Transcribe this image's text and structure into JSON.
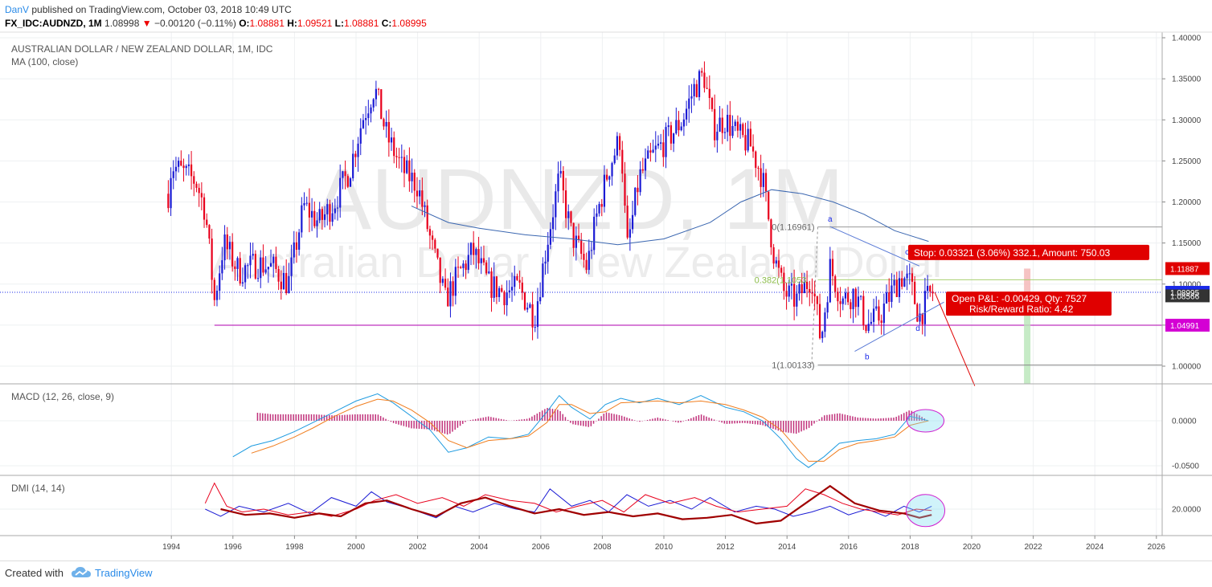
{
  "header": {
    "author": "DanV",
    "published": "published on TradingView.com, October 03, 2018 10:49 UTC",
    "symbol": "FX_IDC:AUDNZD, 1M",
    "last": "1.08998",
    "change": "−0.00120 (−0.11%)",
    "o_label": "O:",
    "o_value": "1.08881",
    "h_label": "H:",
    "h_value": "1.09521",
    "l_label": "L:",
    "l_value": "1.08881",
    "c_label": "C:",
    "c_value": "1.08995"
  },
  "panes": {
    "main": {
      "title": "AUSTRALIAN DOLLAR / NEW ZEALAND DOLLAR, 1M, IDC",
      "indicator": "MA (100, close)",
      "watermark_symbol": "AUDNZD, 1M",
      "watermark_name": "Australian Dollar / New Zealand Dollar"
    },
    "macd": {
      "title": "MACD (12, 26, close, 9)"
    },
    "dmi": {
      "title": "DMI (14, 14)"
    }
  },
  "annotations": {
    "fib_0": "0(1.16961)",
    "fib_382": "0.382(1.1053",
    "fib_1": "1(1.00133)",
    "wave_a": "a",
    "wave_b": "b",
    "wave_c": "c",
    "wave_d": "d",
    "stop_label": "Stop: 0.03321 (3.06%) 332.1, Amount: 750.03",
    "pnl_line1": "Open P&L: -0.00429, Qty: 7527",
    "pnl_line2": "Risk/Reward Ratio: 4.42"
  },
  "price_tags": [
    {
      "value": "1.11887",
      "color": "#e00000"
    },
    {
      "value": "1.08995",
      "color": "#1a2ae8"
    },
    {
      "value": "1.08566",
      "color": "#333333"
    },
    {
      "value": "1.04991",
      "color": "#d400d4"
    }
  ],
  "footer": {
    "created": "Created with",
    "brand": "TradingView"
  },
  "colors": {
    "up": "#1a1ad4",
    "down": "#e8001c",
    "ma": "#3a66b0",
    "macd": "#1e9be0",
    "signal": "#f07d1e",
    "hist": "#c0307a",
    "di_plus": "#1a1ad4",
    "di_minus": "#e8001c",
    "adx": "#a00000",
    "support": "#b000b0"
  },
  "chart_data": [
    {
      "type": "candlestick",
      "pane": "main",
      "title": "AUSTRALIAN DOLLAR / NEW ZEALAND DOLLAR, 1M, IDC",
      "x_ticks": [
        "1994",
        "1996",
        "1998",
        "2000",
        "2002",
        "2004",
        "2006",
        "2008",
        "2010",
        "2012",
        "2014",
        "2016",
        "2018",
        "2020",
        "2022",
        "2024",
        "2026"
      ],
      "xlim": [
        1993.5,
        2026.8
      ],
      "y_ticks": [
        "1.40000",
        "1.35000",
        "1.30000",
        "1.25000",
        "1.20000",
        "1.15000",
        "1.10000",
        "1.05000",
        "1.00000"
      ],
      "ylim": [
        0.976,
        1.402
      ],
      "price_path": [
        [
          1993.9,
          1.21
        ],
        [
          1994.0,
          1.245
        ],
        [
          1994.4,
          1.235
        ],
        [
          1994.8,
          1.225
        ],
        [
          1995.1,
          1.19
        ],
        [
          1995.4,
          1.08
        ],
        [
          1995.7,
          1.15
        ],
        [
          1996.2,
          1.115
        ],
        [
          1996.8,
          1.125
        ],
        [
          1997.3,
          1.12
        ],
        [
          1997.8,
          1.1
        ],
        [
          1998.3,
          1.195
        ],
        [
          1998.8,
          1.175
        ],
        [
          1999.3,
          1.2
        ],
        [
          1999.8,
          1.24
        ],
        [
          2000.2,
          1.3
        ],
        [
          2000.6,
          1.34
        ],
        [
          2001.0,
          1.28
        ],
        [
          2001.5,
          1.24
        ],
        [
          2002.0,
          1.22
        ],
        [
          2002.5,
          1.14
        ],
        [
          2002.9,
          1.08
        ],
        [
          2003.3,
          1.11
        ],
        [
          2003.8,
          1.14
        ],
        [
          2004.3,
          1.1
        ],
        [
          2004.8,
          1.09
        ],
        [
          2005.3,
          1.095
        ],
        [
          2005.8,
          1.06
        ],
        [
          2006.2,
          1.15
        ],
        [
          2006.6,
          1.23
        ],
        [
          2007.0,
          1.16
        ],
        [
          2007.5,
          1.12
        ],
        [
          2007.8,
          1.18
        ],
        [
          2008.2,
          1.24
        ],
        [
          2008.6,
          1.28
        ],
        [
          2008.8,
          1.14
        ],
        [
          2009.2,
          1.23
        ],
        [
          2009.7,
          1.26
        ],
        [
          2010.2,
          1.28
        ],
        [
          2010.6,
          1.3
        ],
        [
          2011.0,
          1.34
        ],
        [
          2011.3,
          1.355
        ],
        [
          2011.6,
          1.29
        ],
        [
          2012.0,
          1.3
        ],
        [
          2012.4,
          1.28
        ],
        [
          2012.8,
          1.27
        ],
        [
          2013.2,
          1.23
        ],
        [
          2013.6,
          1.13
        ],
        [
          2013.9,
          1.09
        ],
        [
          2014.3,
          1.08
        ],
        [
          2014.8,
          1.11
        ],
        [
          2015.1,
          1.03
        ],
        [
          2015.4,
          1.12
        ],
        [
          2015.8,
          1.08
        ],
        [
          2016.2,
          1.09
        ],
        [
          2016.6,
          1.05
        ],
        [
          2017.0,
          1.06
        ],
        [
          2017.4,
          1.09
        ],
        [
          2017.7,
          1.11
        ],
        [
          2018.0,
          1.1
        ],
        [
          2018.3,
          1.06
        ],
        [
          2018.6,
          1.085
        ],
        [
          2018.75,
          1.09
        ]
      ],
      "ma_100": [
        [
          2001.8,
          1.195
        ],
        [
          2003.0,
          1.175
        ],
        [
          2004.0,
          1.168
        ],
        [
          2005.5,
          1.16
        ],
        [
          2007.0,
          1.155
        ],
        [
          2008.5,
          1.148
        ],
        [
          2010.0,
          1.155
        ],
        [
          2011.5,
          1.175
        ],
        [
          2012.5,
          1.2
        ],
        [
          2013.5,
          1.215
        ],
        [
          2014.5,
          1.21
        ],
        [
          2015.5,
          1.2
        ],
        [
          2016.5,
          1.185
        ],
        [
          2017.5,
          1.165
        ],
        [
          2018.6,
          1.152
        ]
      ],
      "levels": {
        "support": 1.04991,
        "fib_0": 1.16961,
        "fib_0382": 1.1053,
        "fib_1": 1.00133,
        "last_price": 1.08995
      },
      "wave_points": {
        "a": [
          2015.4,
          1.17
        ],
        "b": [
          2016.6,
          1.022
        ],
        "c": [
          2017.9,
          1.13
        ],
        "d": [
          2018.25,
          1.055
        ]
      },
      "position": {
        "entry": 1.08566,
        "stop": 1.11887,
        "target": 1.00133
      }
    },
    {
      "type": "line",
      "pane": "macd",
      "title": "MACD (12, 26, close, 9)",
      "y_ticks": [
        "0.0000",
        "-0.0500"
      ],
      "ylim": [
        -0.063,
        0.04
      ],
      "series": [
        {
          "name": "MACD",
          "x": [
            1996.0,
            1996.6,
            1997.3,
            1998.0,
            1998.6,
            1999.3,
            2000.0,
            2000.7,
            2001.2,
            2001.8,
            2002.4,
            2003.0,
            2003.6,
            2004.3,
            2005.0,
            2005.6,
            2006.2,
            2006.6,
            2007.0,
            2007.6,
            2008.1,
            2008.6,
            2009.2,
            2009.8,
            2010.5,
            2011.2,
            2012.0,
            2012.6,
            2013.2,
            2013.8,
            2014.3,
            2014.7,
            2015.2,
            2015.7,
            2016.3,
            2016.9,
            2017.5,
            2018.0,
            2018.6
          ],
          "y": [
            -0.04,
            -0.028,
            -0.022,
            -0.012,
            -0.002,
            0.01,
            0.022,
            0.03,
            0.02,
            0.005,
            -0.01,
            -0.035,
            -0.03,
            -0.018,
            -0.02,
            -0.015,
            0.01,
            0.028,
            0.015,
            0.002,
            0.018,
            0.025,
            0.02,
            0.025,
            0.018,
            0.028,
            0.015,
            0.01,
            0.0,
            -0.02,
            -0.042,
            -0.052,
            -0.04,
            -0.025,
            -0.022,
            -0.02,
            -0.015,
            0.005,
            0.0
          ]
        },
        {
          "name": "Signal",
          "x": [
            1996.6,
            1997.3,
            1998.0,
            1998.6,
            1999.3,
            2000.0,
            2000.7,
            2001.2,
            2001.8,
            2002.4,
            2003.0,
            2003.6,
            2004.3,
            2005.0,
            2005.6,
            2006.2,
            2006.6,
            2007.0,
            2007.6,
            2008.1,
            2008.6,
            2009.2,
            2009.8,
            2010.5,
            2011.2,
            2012.0,
            2012.6,
            2013.2,
            2013.8,
            2014.3,
            2014.7,
            2015.2,
            2015.7,
            2016.3,
            2016.9,
            2017.5,
            2018.0,
            2018.6
          ],
          "y": [
            -0.036,
            -0.028,
            -0.018,
            -0.008,
            0.005,
            0.016,
            0.024,
            0.022,
            0.012,
            -0.002,
            -0.022,
            -0.03,
            -0.022,
            -0.02,
            -0.017,
            -0.002,
            0.018,
            0.018,
            0.008,
            0.01,
            0.02,
            0.021,
            0.022,
            0.02,
            0.022,
            0.018,
            0.012,
            0.004,
            -0.01,
            -0.03,
            -0.045,
            -0.045,
            -0.032,
            -0.025,
            -0.022,
            -0.018,
            -0.005,
            0.0
          ]
        },
        {
          "name": "Histogram",
          "x_start": 1996.8,
          "x_end": 2018.7,
          "note": "bars around zero"
        }
      ]
    },
    {
      "type": "line",
      "pane": "dmi",
      "title": "DMI (14, 14)",
      "y_ticks": [
        "20.0000"
      ],
      "ylim": [
        5,
        45
      ],
      "series": [
        {
          "name": "+DI",
          "x": [
            1995.1,
            1995.6,
            1996.2,
            1997.0,
            1997.8,
            1998.5,
            1999.2,
            2000.0,
            2000.5,
            2001.0,
            2001.8,
            2002.6,
            2003.2,
            2003.8,
            2004.5,
            2005.2,
            2005.8,
            2006.3,
            2007.0,
            2007.6,
            2008.2,
            2008.8,
            2009.5,
            2010.2,
            2010.9,
            2011.5,
            2012.3,
            2013.0,
            2013.6,
            2014.2,
            2014.8,
            2015.4,
            2016.0,
            2016.6,
            2017.2,
            2017.8,
            2018.3,
            2018.7
          ],
          "y": [
            20,
            15,
            22,
            18,
            24,
            17,
            28,
            22,
            32,
            25,
            20,
            14,
            22,
            18,
            24,
            20,
            18,
            34,
            22,
            26,
            18,
            30,
            22,
            26,
            20,
            28,
            18,
            22,
            20,
            15,
            18,
            22,
            16,
            20,
            15,
            22,
            18,
            22
          ]
        },
        {
          "name": "-DI",
          "x": [
            1995.1,
            1995.4,
            1995.8,
            1996.3,
            1997.0,
            1997.8,
            1998.5,
            1999.2,
            2000.0,
            2000.6,
            2001.3,
            2002.0,
            2002.8,
            2003.5,
            2004.2,
            2005.0,
            2005.8,
            2006.5,
            2007.2,
            2008.0,
            2008.7,
            2009.4,
            2010.2,
            2011.0,
            2011.7,
            2012.4,
            2013.2,
            2014.0,
            2014.6,
            2015.2,
            2015.8,
            2016.4,
            2017.0,
            2017.6,
            2018.2,
            2018.7
          ],
          "y": [
            24,
            38,
            22,
            18,
            20,
            16,
            18,
            15,
            20,
            26,
            30,
            24,
            28,
            22,
            30,
            26,
            24,
            18,
            22,
            26,
            18,
            30,
            24,
            28,
            22,
            18,
            20,
            22,
            34,
            30,
            24,
            20,
            18,
            16,
            20,
            19
          ]
        },
        {
          "name": "ADX",
          "x": [
            1995.6,
            1996.4,
            1997.2,
            1998.0,
            1998.8,
            1999.5,
            2000.3,
            2001.0,
            2001.8,
            2002.6,
            2003.4,
            2004.2,
            2005.0,
            2005.8,
            2006.6,
            2007.4,
            2008.2,
            2009.0,
            2009.8,
            2010.6,
            2011.4,
            2012.2,
            2013.0,
            2013.8,
            2014.6,
            2015.4,
            2016.2,
            2017.0,
            2017.8,
            2018.3,
            2018.7
          ],
          "y": [
            20,
            16,
            17,
            14,
            17,
            15,
            24,
            26,
            20,
            15,
            24,
            28,
            22,
            17,
            20,
            16,
            18,
            15,
            17,
            13,
            14,
            16,
            10,
            12,
            24,
            36,
            24,
            19,
            17,
            14,
            16
          ]
        }
      ]
    }
  ]
}
